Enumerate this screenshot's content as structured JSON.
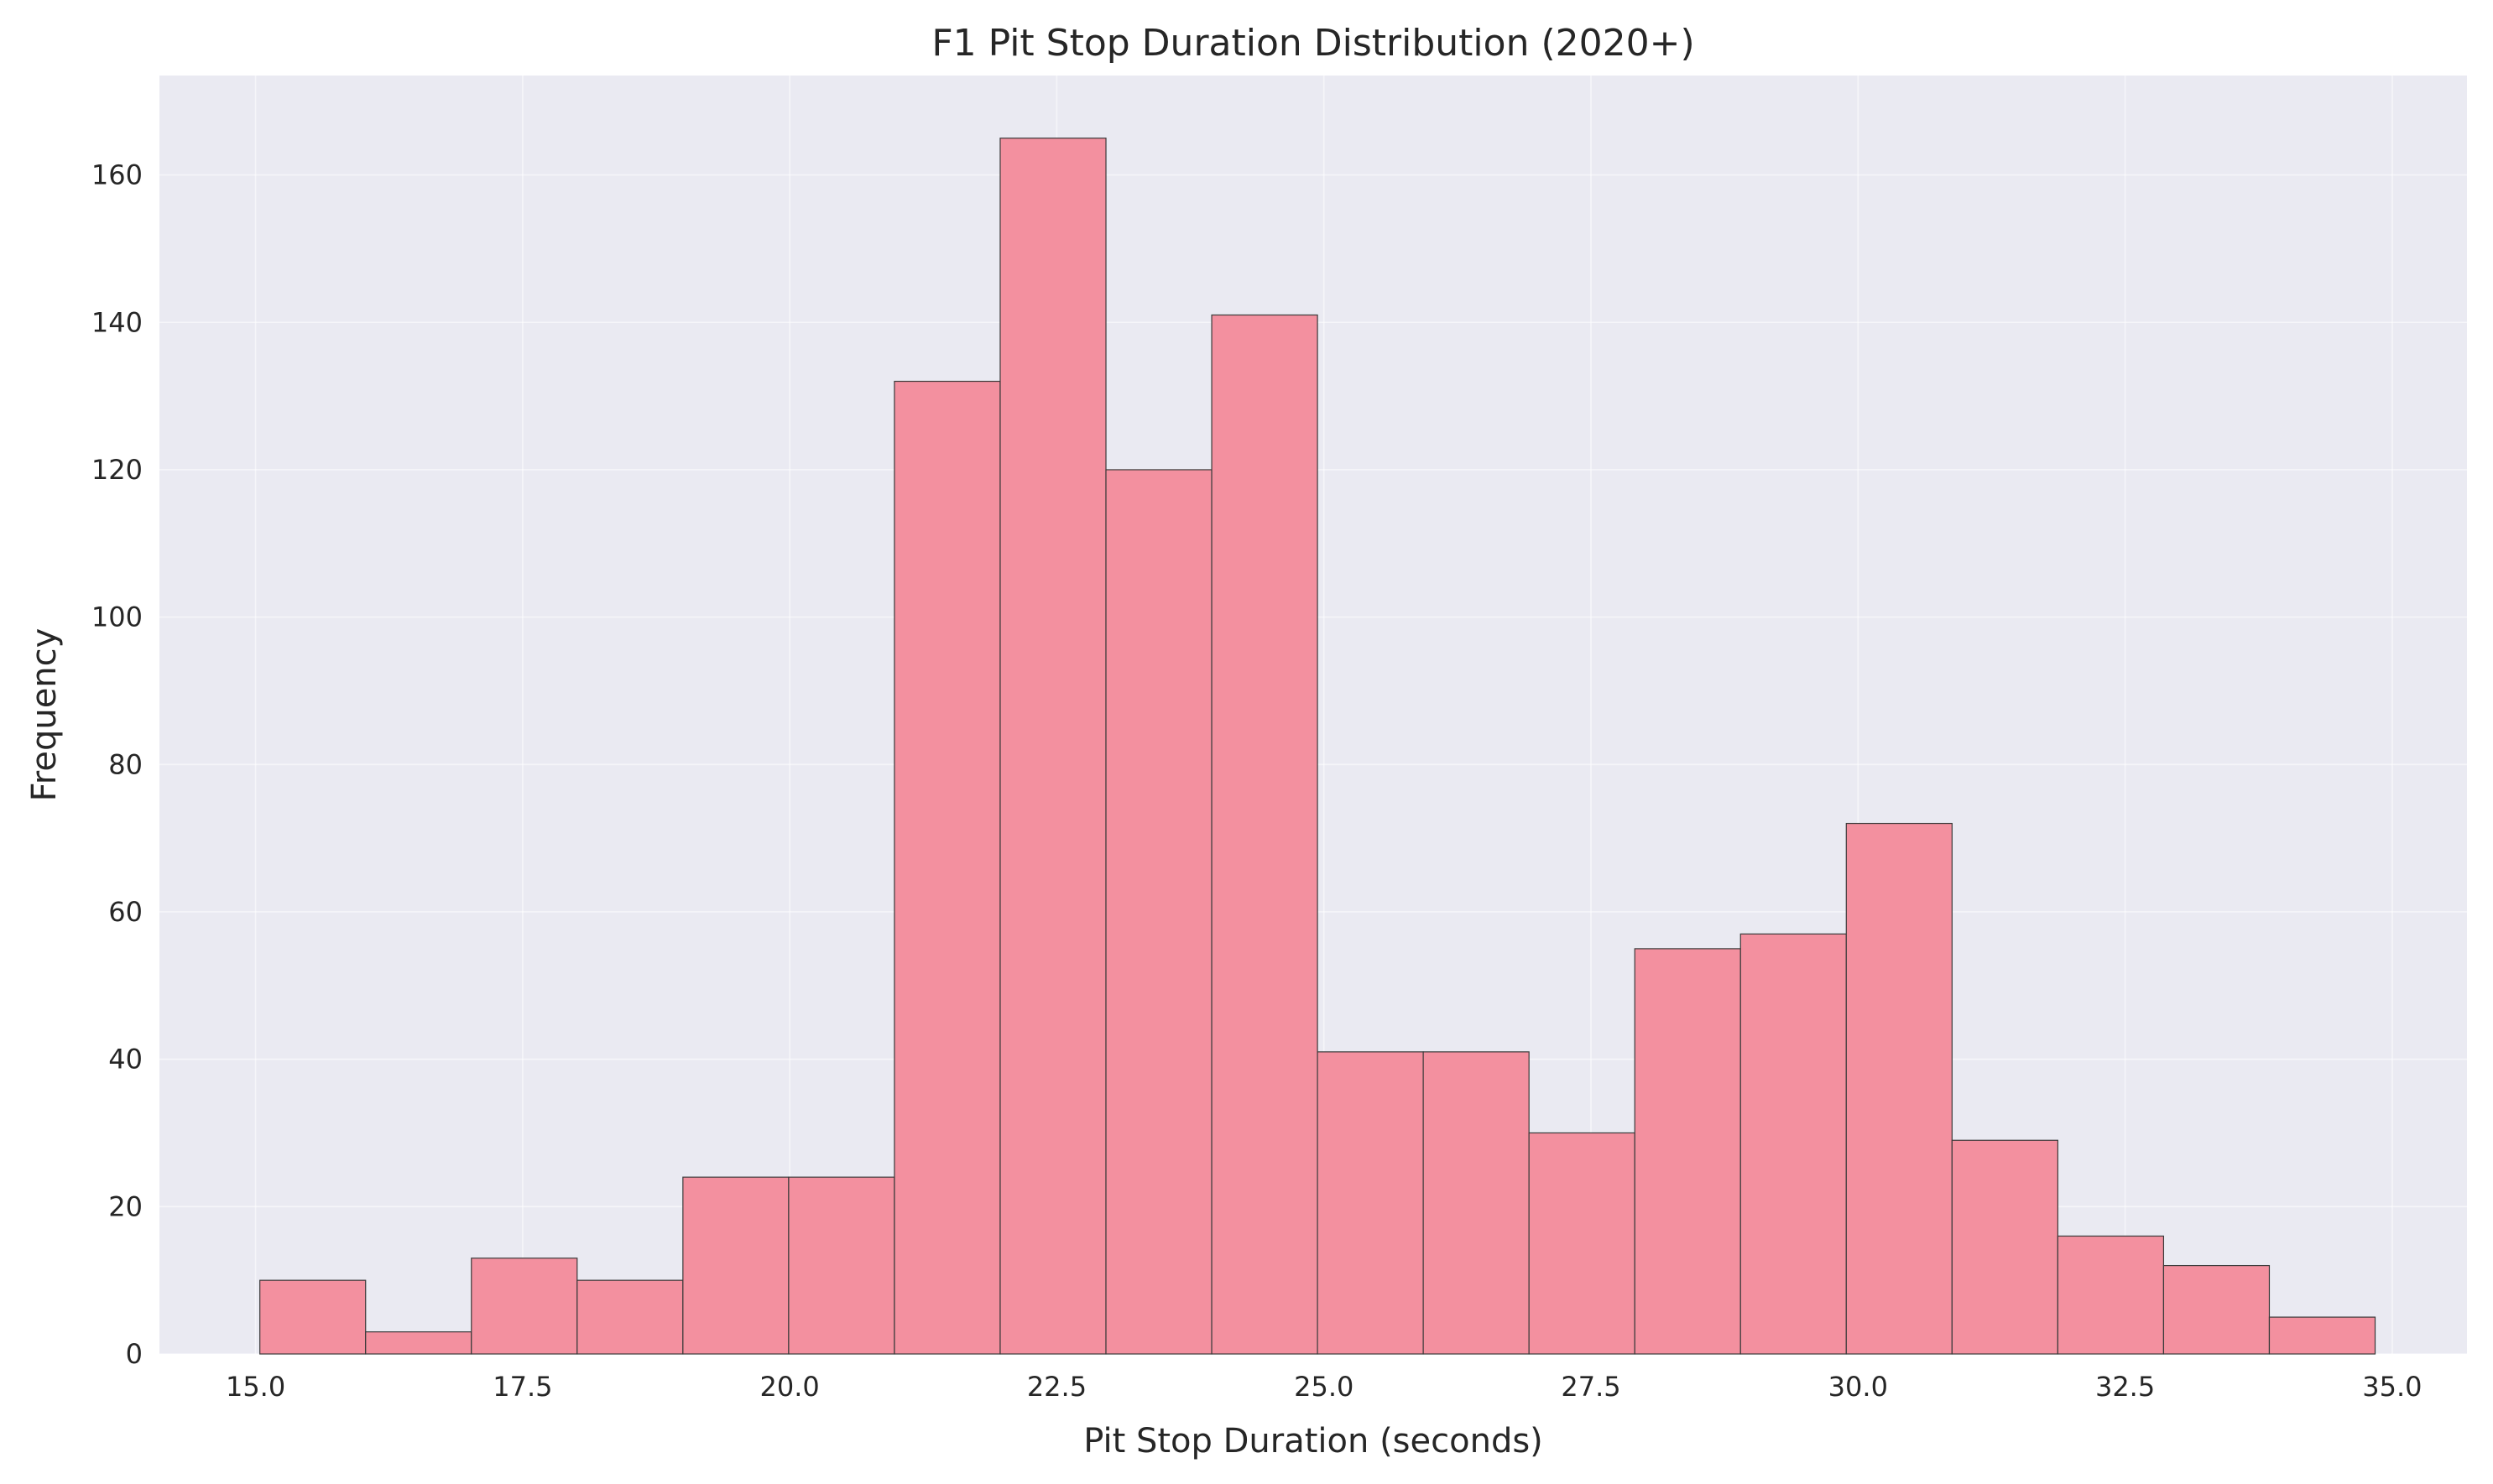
{
  "chart_data": {
    "type": "bar",
    "subtype": "histogram",
    "title": "F1 Pit Stop Duration Distribution (2020+)",
    "xlabel": "Pit Stop Duration (seconds)",
    "ylabel": "Frequency",
    "xlim": [
      14.1,
      35.7
    ],
    "ylim": [
      0,
      173.5
    ],
    "x_ticks": [
      "15.0",
      "17.5",
      "20.0",
      "22.5",
      "25.0",
      "27.5",
      "30.0",
      "32.5",
      "35.0"
    ],
    "x_tick_values": [
      15.0,
      17.5,
      20.0,
      22.5,
      25.0,
      27.5,
      30.0,
      32.5,
      35.0
    ],
    "y_ticks": [
      "0",
      "20",
      "40",
      "60",
      "80",
      "100",
      "120",
      "140",
      "160"
    ],
    "y_tick_values": [
      0,
      20,
      40,
      60,
      80,
      100,
      120,
      140,
      160
    ],
    "bin_start": 15.04,
    "bin_width": 0.99,
    "values": [
      10,
      3,
      13,
      10,
      24,
      24,
      132,
      165,
      120,
      141,
      41,
      41,
      30,
      55,
      57,
      72,
      29,
      16,
      12,
      5
    ],
    "grid": true,
    "colors": {
      "bar": "#f3909f",
      "edge": "#3a3a3a",
      "plot_background": "#eaeaf2",
      "grid": "#ffffff"
    }
  }
}
